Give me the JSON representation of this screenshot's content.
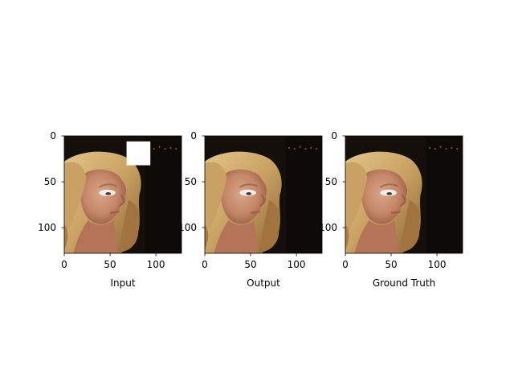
{
  "chart_data": [
    {
      "type": "image",
      "xlabel": "Input",
      "xlim": [
        0,
        128
      ],
      "ylim": [
        128,
        0
      ],
      "xticks": [
        "0",
        "50",
        "100"
      ],
      "yticks": [
        "0",
        "50",
        "100"
      ],
      "mask": {
        "x": [
          68,
          94
        ],
        "y": [
          6,
          32
        ]
      }
    },
    {
      "type": "image",
      "xlabel": "Output",
      "xlim": [
        0,
        128
      ],
      "ylim": [
        128,
        0
      ],
      "xticks": [
        "0",
        "50",
        "100"
      ],
      "yticks": [
        "0",
        "50",
        "100"
      ]
    },
    {
      "type": "image",
      "xlabel": "Ground Truth",
      "xlim": [
        0,
        128
      ],
      "ylim": [
        128,
        0
      ],
      "xticks": [
        "0",
        "50",
        "100"
      ],
      "yticks": [
        "0",
        "50",
        "100"
      ]
    }
  ]
}
